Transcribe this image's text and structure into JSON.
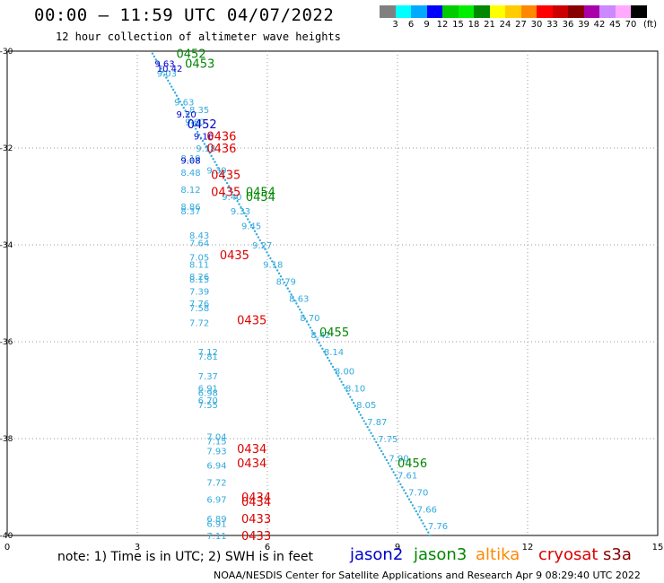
{
  "header": {
    "title": "00:00 – 11:59 UTC 04/07/2022",
    "subtitle": "12 hour collection of altimeter wave heights"
  },
  "colorbar": {
    "colors": [
      "#808080",
      "#00ffff",
      "#00aaff",
      "#0000ff",
      "#00cc00",
      "#00ee00",
      "#008800",
      "#ffff00",
      "#ffcc00",
      "#ff8800",
      "#ff0000",
      "#cc0000",
      "#880000",
      "#aa00aa",
      "#cc88ff",
      "#ffaaff",
      "#000000"
    ],
    "labels": [
      "3",
      "6",
      "9",
      "12",
      "15",
      "18",
      "21",
      "24",
      "27",
      "30",
      "33",
      "36",
      "39",
      "42",
      "45",
      "70",
      "(ft)"
    ]
  },
  "note": "note:  1) Time is in UTC;  2) SWH is in feet",
  "legend": [
    {
      "name": "jason2",
      "color": "#0000cc"
    },
    {
      "name": "jason3",
      "color": "#008800"
    },
    {
      "name": "altika",
      "color": "#ff8800"
    },
    {
      "name": "cryosat",
      "color": "#dd0000"
    },
    {
      "name": "s3a",
      "color": "#880000"
    }
  ],
  "footer": "NOAA/NESDIS Center for Satellite Applications and Research    Apr  9 08:29:40 UTC 2022",
  "chart_data": {
    "type": "scatter",
    "x_ticks": [
      "0",
      "3",
      "6",
      "9",
      "12",
      "15"
    ],
    "y_ticks": [
      "-30",
      "-32",
      "-34",
      "-36",
      "-38",
      "-40"
    ],
    "xlim": [
      0,
      15
    ],
    "ylim": [
      -40,
      -30
    ],
    "colors": {
      "track": "#33aadd",
      "jason2": "#0000cc",
      "jason3": "#008800",
      "cryosat": "#dd0000"
    },
    "track_value_labels": [
      {
        "x": 3.45,
        "y": -30.45,
        "text": "9.03"
      },
      {
        "x": 3.85,
        "y": -31.05,
        "text": "9.63"
      },
      {
        "x": 4.1,
        "y": -31.45,
        "text": "9.60"
      },
      {
        "x": 4.35,
        "y": -32.0,
        "text": "9.18"
      },
      {
        "x": 4.6,
        "y": -32.45,
        "text": "9.39"
      },
      {
        "x": 4.95,
        "y": -33.0,
        "text": "9.40"
      },
      {
        "x": 5.15,
        "y": -33.3,
        "text": "9.33"
      },
      {
        "x": 5.4,
        "y": -33.6,
        "text": "9.45"
      },
      {
        "x": 5.65,
        "y": -34.0,
        "text": "9.27"
      },
      {
        "x": 5.9,
        "y": -34.4,
        "text": "9.18"
      },
      {
        "x": 6.2,
        "y": -34.75,
        "text": "8.79"
      },
      {
        "x": 6.5,
        "y": -35.1,
        "text": "8.63"
      },
      {
        "x": 6.75,
        "y": -35.5,
        "text": "8.70"
      },
      {
        "x": 7.0,
        "y": -35.85,
        "text": "8.42"
      },
      {
        "x": 7.3,
        "y": -36.2,
        "text": "8.14"
      },
      {
        "x": 7.55,
        "y": -36.6,
        "text": "8.00"
      },
      {
        "x": 7.8,
        "y": -36.95,
        "text": "8.10"
      },
      {
        "x": 8.05,
        "y": -37.3,
        "text": "8.05"
      },
      {
        "x": 8.3,
        "y": -37.65,
        "text": "7.87"
      },
      {
        "x": 8.55,
        "y": -38.0,
        "text": "7.75"
      },
      {
        "x": 8.8,
        "y": -38.4,
        "text": "7.90"
      },
      {
        "x": 9.0,
        "y": -38.75,
        "text": "7.61"
      },
      {
        "x": 9.25,
        "y": -39.1,
        "text": "7.70"
      },
      {
        "x": 9.45,
        "y": -39.45,
        "text": "7.66"
      },
      {
        "x": 9.7,
        "y": -39.8,
        "text": "7.76"
      },
      {
        "x": 4.2,
        "y": -31.2,
        "text": "8.35"
      },
      {
        "x": 4.0,
        "y": -32.2,
        "text": "8.19"
      },
      {
        "x": 4.0,
        "y": -32.5,
        "text": "8.48"
      },
      {
        "x": 4.0,
        "y": -32.85,
        "text": "8.12"
      },
      {
        "x": 4.0,
        "y": -33.2,
        "text": "8.86"
      },
      {
        "x": 4.0,
        "y": -33.3,
        "text": "8.37"
      },
      {
        "x": 4.2,
        "y": -33.8,
        "text": "8.43"
      },
      {
        "x": 4.2,
        "y": -33.95,
        "text": "7.64"
      },
      {
        "x": 4.2,
        "y": -34.25,
        "text": "7.05"
      },
      {
        "x": 4.2,
        "y": -34.4,
        "text": "8.11"
      },
      {
        "x": 4.2,
        "y": -34.65,
        "text": "8.26"
      },
      {
        "x": 4.2,
        "y": -34.7,
        "text": "8.15"
      },
      {
        "x": 4.2,
        "y": -34.95,
        "text": "7.39"
      },
      {
        "x": 4.2,
        "y": -35.2,
        "text": "7.76"
      },
      {
        "x": 4.2,
        "y": -35.3,
        "text": "7.58"
      },
      {
        "x": 4.2,
        "y": -35.6,
        "text": "7.72"
      },
      {
        "x": 4.4,
        "y": -36.2,
        "text": "7.12"
      },
      {
        "x": 4.4,
        "y": -36.3,
        "text": "7.81"
      },
      {
        "x": 4.4,
        "y": -36.7,
        "text": "7.37"
      },
      {
        "x": 4.4,
        "y": -36.95,
        "text": "6.91"
      },
      {
        "x": 4.4,
        "y": -37.05,
        "text": "6.98"
      },
      {
        "x": 4.4,
        "y": -37.2,
        "text": "6.70"
      },
      {
        "x": 4.4,
        "y": -37.3,
        "text": "7.55"
      },
      {
        "x": 4.6,
        "y": -37.95,
        "text": "7.04"
      },
      {
        "x": 4.6,
        "y": -38.05,
        "text": "7.15"
      },
      {
        "x": 4.6,
        "y": -38.25,
        "text": "7.93"
      },
      {
        "x": 4.6,
        "y": -38.55,
        "text": "6.94"
      },
      {
        "x": 4.6,
        "y": -38.9,
        "text": "7.72"
      },
      {
        "x": 4.6,
        "y": -39.25,
        "text": "6.97"
      },
      {
        "x": 4.6,
        "y": -39.65,
        "text": "6.89"
      },
      {
        "x": 4.6,
        "y": -39.75,
        "text": "6.91"
      },
      {
        "x": 4.6,
        "y": -40.0,
        "text": "7.11"
      }
    ],
    "jason2_value_labels": [
      {
        "x": 3.4,
        "y": -30.25,
        "text": "9.63"
      },
      {
        "x": 3.45,
        "y": -30.35,
        "text": "10.42"
      },
      {
        "x": 3.9,
        "y": -31.3,
        "text": "9.20"
      },
      {
        "x": 4.3,
        "y": -31.75,
        "text": "9.16"
      },
      {
        "x": 4.0,
        "y": -32.25,
        "text": "9.08"
      }
    ],
    "time_labels": [
      {
        "x": 3.9,
        "y": -30.05,
        "text": "0452",
        "sat": "jason3"
      },
      {
        "x": 4.1,
        "y": -30.25,
        "text": "0453",
        "sat": "jason3"
      },
      {
        "x": 4.15,
        "y": -31.5,
        "text": "0452",
        "sat": "jason2"
      },
      {
        "x": 4.6,
        "y": -31.75,
        "text": "0436",
        "sat": "cryosat"
      },
      {
        "x": 4.6,
        "y": -32.0,
        "text": "0436",
        "sat": "cryosat"
      },
      {
        "x": 4.7,
        "y": -32.55,
        "text": "0435",
        "sat": "cryosat"
      },
      {
        "x": 4.7,
        "y": -32.9,
        "text": "0435",
        "sat": "cryosat"
      },
      {
        "x": 5.5,
        "y": -32.9,
        "text": "0454",
        "sat": "jason3"
      },
      {
        "x": 5.5,
        "y": -33.0,
        "text": "0454",
        "sat": "jason3"
      },
      {
        "x": 4.9,
        "y": -34.2,
        "text": "0435",
        "sat": "cryosat"
      },
      {
        "x": 5.3,
        "y": -35.55,
        "text": "0435",
        "sat": "cryosat"
      },
      {
        "x": 7.2,
        "y": -35.8,
        "text": "0455",
        "sat": "jason3"
      },
      {
        "x": 5.3,
        "y": -38.2,
        "text": "0434",
        "sat": "cryosat"
      },
      {
        "x": 5.3,
        "y": -38.5,
        "text": "0434",
        "sat": "cryosat"
      },
      {
        "x": 9.0,
        "y": -38.5,
        "text": "0456",
        "sat": "jason3"
      },
      {
        "x": 5.4,
        "y": -39.2,
        "text": "0434",
        "sat": "cryosat"
      },
      {
        "x": 5.4,
        "y": -39.3,
        "text": "0434",
        "sat": "cryosat"
      },
      {
        "x": 5.4,
        "y": -39.65,
        "text": "0433",
        "sat": "cryosat"
      },
      {
        "x": 5.4,
        "y": -40.0,
        "text": "0433",
        "sat": "cryosat"
      }
    ]
  }
}
